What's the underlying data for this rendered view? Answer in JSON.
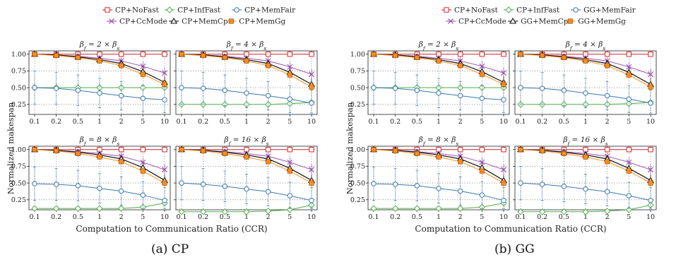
{
  "figure": {
    "y_label": "Normalized makespan",
    "x_label": "Computation to Communication Ratio (CCR)",
    "x_ticks": [
      "0.1",
      "0.2",
      "0.5",
      "1",
      "2",
      "5",
      "10"
    ],
    "y_ticks": [
      "0.25",
      "0.50",
      "0.75",
      "1.00"
    ],
    "subplot_titles": [
      "βf = 2 × βs",
      "βf = 4 × βs",
      "βf = 8 × βs",
      "βf = 16 × βs"
    ],
    "colors": {
      "red": "#d62728",
      "green": "#4daf4a",
      "blue": "#3a78b0",
      "purple": "#9b4fb0",
      "black": "#111111",
      "orange": "#ff8c1a"
    }
  },
  "panels": [
    {
      "caption": "(a) CP",
      "legend_row1": [
        {
          "label": "CP+NoFast",
          "color": "#d62728",
          "marker": "square"
        },
        {
          "label": "CP+InfFast",
          "color": "#4daf4a",
          "marker": "diamond"
        },
        {
          "label": "CP+MemFair",
          "color": "#3a78b0",
          "marker": "circle"
        }
      ],
      "legend_row2": [
        {
          "label": "CP+CcMode",
          "color": "#9b4fb0",
          "marker": "x"
        },
        {
          "label": "CP+MemCp",
          "color": "#111111",
          "marker": "triangle"
        },
        {
          "label": "CP+MemGg",
          "color": "#ff8c1a",
          "marker": "filled-square"
        }
      ]
    },
    {
      "caption": "(b) GG",
      "legend_row1": [
        {
          "label": "CP+NoFast",
          "color": "#d62728",
          "marker": "square"
        },
        {
          "label": "CP+InfFast",
          "color": "#4daf4a",
          "marker": "diamond"
        },
        {
          "label": "GG+MemFair",
          "color": "#3a78b0",
          "marker": "circle"
        }
      ],
      "legend_row2": [
        {
          "label": "CP+CcMode",
          "color": "#9b4fb0",
          "marker": "x"
        },
        {
          "label": "GG+MemCp",
          "color": "#111111",
          "marker": "triangle"
        },
        {
          "label": "GG+MemGg",
          "color": "#ff8c1a",
          "marker": "filled-square"
        }
      ]
    }
  ],
  "chart_data": [
    {
      "type": "line",
      "panel": "(a) CP",
      "title": "βf = 2 × βs",
      "x": [
        "0.1",
        "0.2",
        "0.5",
        "1",
        "2",
        "5",
        "10"
      ],
      "ylim": [
        0.1,
        1.05
      ],
      "grid": true,
      "series": [
        {
          "name": "CP+NoFast",
          "values": [
            1.0,
            1.0,
            1.0,
            1.0,
            1.0,
            1.0,
            1.0
          ]
        },
        {
          "name": "CP+InfFast",
          "values": [
            0.5,
            0.5,
            0.5,
            0.5,
            0.5,
            0.5,
            0.5
          ]
        },
        {
          "name": "CP+MemFair",
          "values": [
            0.5,
            0.49,
            0.46,
            0.42,
            0.38,
            0.34,
            0.32
          ]
        },
        {
          "name": "CP+CcMode",
          "values": [
            1.0,
            0.99,
            0.97,
            0.94,
            0.9,
            0.82,
            0.72
          ]
        },
        {
          "name": "CP+MemCp",
          "values": [
            1.0,
            0.99,
            0.96,
            0.92,
            0.86,
            0.74,
            0.58
          ]
        },
        {
          "name": "CP+MemGg",
          "values": [
            1.0,
            0.98,
            0.95,
            0.9,
            0.83,
            0.7,
            0.55
          ]
        }
      ]
    },
    {
      "type": "line",
      "panel": "(a) CP",
      "title": "βf = 4 × βs",
      "x": [
        "0.1",
        "0.2",
        "0.5",
        "1",
        "2",
        "5",
        "10"
      ],
      "ylim": [
        0.1,
        1.05
      ],
      "grid": true,
      "series": [
        {
          "name": "CP+NoFast",
          "values": [
            1.0,
            1.0,
            1.0,
            1.0,
            1.0,
            1.0,
            1.0
          ]
        },
        {
          "name": "CP+InfFast",
          "values": [
            0.25,
            0.25,
            0.25,
            0.25,
            0.25,
            0.26,
            0.28
          ]
        },
        {
          "name": "CP+MemFair",
          "values": [
            0.5,
            0.49,
            0.46,
            0.42,
            0.38,
            0.33,
            0.27
          ]
        },
        {
          "name": "CP+CcMode",
          "values": [
            1.0,
            0.99,
            0.97,
            0.94,
            0.9,
            0.81,
            0.7
          ]
        },
        {
          "name": "CP+MemCp",
          "values": [
            1.0,
            0.99,
            0.96,
            0.92,
            0.86,
            0.73,
            0.55
          ]
        },
        {
          "name": "CP+MemGg",
          "values": [
            1.0,
            0.98,
            0.95,
            0.9,
            0.83,
            0.69,
            0.51
          ]
        }
      ]
    },
    {
      "type": "line",
      "panel": "(a) CP",
      "title": "βf = 8 × βs",
      "x": [
        "0.1",
        "0.2",
        "0.5",
        "1",
        "2",
        "5",
        "10"
      ],
      "ylim": [
        0.1,
        1.05
      ],
      "grid": true,
      "series": [
        {
          "name": "CP+NoFast",
          "values": [
            1.0,
            1.0,
            1.0,
            1.0,
            1.0,
            1.0,
            1.0
          ]
        },
        {
          "name": "CP+InfFast",
          "values": [
            0.12,
            0.12,
            0.12,
            0.12,
            0.12,
            0.14,
            0.2
          ]
        },
        {
          "name": "CP+MemFair",
          "values": [
            0.49,
            0.48,
            0.46,
            0.42,
            0.38,
            0.32,
            0.24
          ]
        },
        {
          "name": "CP+CcMode",
          "values": [
            1.0,
            0.99,
            0.97,
            0.94,
            0.9,
            0.81,
            0.7
          ]
        },
        {
          "name": "CP+MemCp",
          "values": [
            1.0,
            0.99,
            0.96,
            0.92,
            0.86,
            0.73,
            0.54
          ]
        },
        {
          "name": "CP+MemGg",
          "values": [
            1.0,
            0.98,
            0.94,
            0.89,
            0.82,
            0.68,
            0.5
          ]
        }
      ]
    },
    {
      "type": "line",
      "panel": "(a) CP",
      "title": "βf = 16 × βs",
      "x": [
        "0.1",
        "0.2",
        "0.5",
        "1",
        "2",
        "5",
        "10"
      ],
      "ylim": [
        0.1,
        1.05
      ],
      "grid": true,
      "series": [
        {
          "name": "CP+NoFast",
          "values": [
            1.0,
            1.0,
            1.0,
            1.0,
            1.0,
            1.0,
            1.0
          ]
        },
        {
          "name": "CP+InfFast",
          "values": [
            0.07,
            0.07,
            0.07,
            0.07,
            0.08,
            0.1,
            0.17
          ]
        },
        {
          "name": "CP+MemFair",
          "values": [
            0.5,
            0.48,
            0.45,
            0.41,
            0.37,
            0.31,
            0.24
          ]
        },
        {
          "name": "CP+CcMode",
          "values": [
            1.0,
            0.99,
            0.97,
            0.94,
            0.9,
            0.81,
            0.7
          ]
        },
        {
          "name": "CP+MemCp",
          "values": [
            1.0,
            0.99,
            0.96,
            0.92,
            0.86,
            0.72,
            0.54
          ]
        },
        {
          "name": "CP+MemGg",
          "values": [
            1.0,
            0.98,
            0.94,
            0.89,
            0.82,
            0.68,
            0.5
          ]
        }
      ]
    },
    {
      "type": "line",
      "panel": "(b) GG",
      "title": "βf = 2 × βs",
      "x": [
        "0.1",
        "0.2",
        "0.5",
        "1",
        "2",
        "5",
        "10"
      ],
      "ylim": [
        0.1,
        1.05
      ],
      "grid": true,
      "series": [
        {
          "name": "CP+NoFast",
          "values": [
            1.0,
            1.0,
            1.0,
            1.0,
            1.0,
            1.0,
            1.0
          ]
        },
        {
          "name": "CP+InfFast",
          "values": [
            0.5,
            0.5,
            0.5,
            0.5,
            0.5,
            0.5,
            0.5
          ]
        },
        {
          "name": "GG+MemFair",
          "values": [
            0.5,
            0.49,
            0.46,
            0.42,
            0.38,
            0.34,
            0.32
          ]
        },
        {
          "name": "CP+CcMode",
          "values": [
            1.0,
            0.99,
            0.97,
            0.94,
            0.9,
            0.82,
            0.72
          ]
        },
        {
          "name": "GG+MemCp",
          "values": [
            1.0,
            0.99,
            0.96,
            0.92,
            0.86,
            0.74,
            0.58
          ]
        },
        {
          "name": "GG+MemGg",
          "values": [
            1.0,
            0.98,
            0.95,
            0.9,
            0.83,
            0.7,
            0.55
          ]
        }
      ]
    },
    {
      "type": "line",
      "panel": "(b) GG",
      "title": "βf = 4 × βs",
      "x": [
        "0.1",
        "0.2",
        "0.5",
        "1",
        "2",
        "5",
        "10"
      ],
      "ylim": [
        0.1,
        1.05
      ],
      "grid": true,
      "series": [
        {
          "name": "CP+NoFast",
          "values": [
            1.0,
            1.0,
            1.0,
            1.0,
            1.0,
            1.0,
            1.0
          ]
        },
        {
          "name": "CP+InfFast",
          "values": [
            0.25,
            0.25,
            0.25,
            0.25,
            0.25,
            0.26,
            0.28
          ]
        },
        {
          "name": "GG+MemFair",
          "values": [
            0.5,
            0.49,
            0.46,
            0.42,
            0.38,
            0.33,
            0.27
          ]
        },
        {
          "name": "CP+CcMode",
          "values": [
            1.0,
            0.99,
            0.97,
            0.94,
            0.9,
            0.81,
            0.7
          ]
        },
        {
          "name": "GG+MemCp",
          "values": [
            1.0,
            0.99,
            0.96,
            0.92,
            0.86,
            0.73,
            0.55
          ]
        },
        {
          "name": "GG+MemGg",
          "values": [
            1.0,
            0.98,
            0.95,
            0.9,
            0.83,
            0.69,
            0.51
          ]
        }
      ]
    },
    {
      "type": "line",
      "panel": "(b) GG",
      "title": "βf = 8 × βs",
      "x": [
        "0.1",
        "0.2",
        "0.5",
        "1",
        "2",
        "5",
        "10"
      ],
      "ylim": [
        0.1,
        1.05
      ],
      "grid": true,
      "series": [
        {
          "name": "CP+NoFast",
          "values": [
            1.0,
            1.0,
            1.0,
            1.0,
            1.0,
            1.0,
            1.0
          ]
        },
        {
          "name": "CP+InfFast",
          "values": [
            0.12,
            0.12,
            0.12,
            0.12,
            0.12,
            0.14,
            0.2
          ]
        },
        {
          "name": "GG+MemFair",
          "values": [
            0.49,
            0.48,
            0.46,
            0.42,
            0.38,
            0.32,
            0.24
          ]
        },
        {
          "name": "CP+CcMode",
          "values": [
            1.0,
            0.99,
            0.97,
            0.94,
            0.9,
            0.81,
            0.7
          ]
        },
        {
          "name": "GG+MemCp",
          "values": [
            1.0,
            0.99,
            0.96,
            0.92,
            0.86,
            0.73,
            0.54
          ]
        },
        {
          "name": "GG+MemGg",
          "values": [
            1.0,
            0.98,
            0.94,
            0.89,
            0.82,
            0.68,
            0.5
          ]
        }
      ]
    },
    {
      "type": "line",
      "panel": "(b) GG",
      "title": "βf = 16 × βs",
      "x": [
        "0.1",
        "0.2",
        "0.5",
        "1",
        "2",
        "5",
        "10"
      ],
      "ylim": [
        0.1,
        1.05
      ],
      "grid": true,
      "series": [
        {
          "name": "CP+NoFast",
          "values": [
            1.0,
            1.0,
            1.0,
            1.0,
            1.0,
            1.0,
            1.0
          ]
        },
        {
          "name": "CP+InfFast",
          "values": [
            0.07,
            0.07,
            0.07,
            0.07,
            0.08,
            0.1,
            0.17
          ]
        },
        {
          "name": "GG+MemFair",
          "values": [
            0.5,
            0.48,
            0.45,
            0.41,
            0.37,
            0.31,
            0.24
          ]
        },
        {
          "name": "CP+CcMode",
          "values": [
            1.0,
            0.99,
            0.97,
            0.94,
            0.9,
            0.81,
            0.7
          ]
        },
        {
          "name": "GG+MemCp",
          "values": [
            1.0,
            0.99,
            0.96,
            0.92,
            0.86,
            0.72,
            0.54
          ]
        },
        {
          "name": "GG+MemGg",
          "values": [
            1.0,
            0.98,
            0.94,
            0.89,
            0.82,
            0.68,
            0.5
          ]
        }
      ]
    }
  ]
}
